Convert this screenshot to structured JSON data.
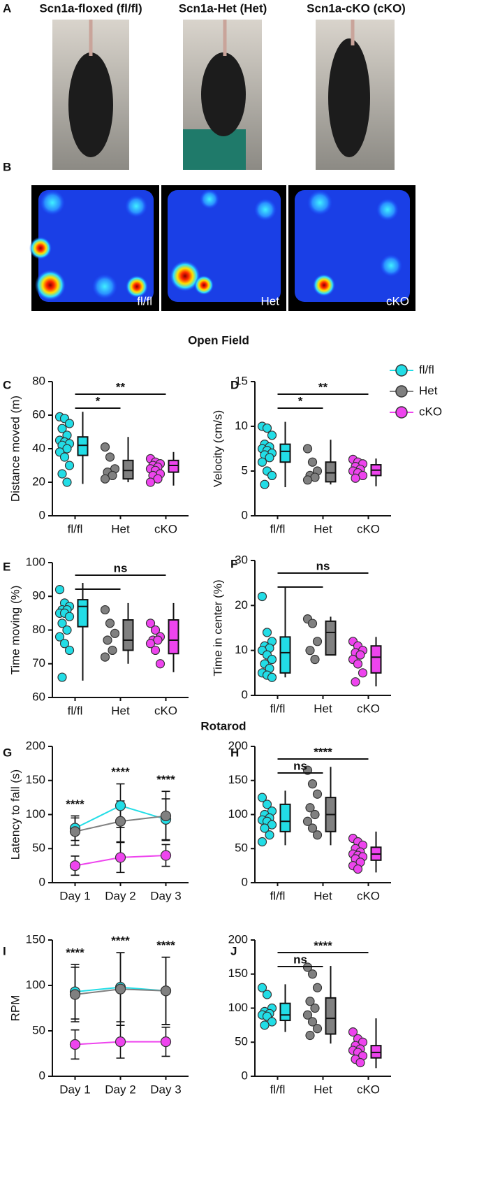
{
  "figure": {
    "photos": [
      {
        "panel": "A",
        "title": "Scn1a-floxed (fl/fl)"
      },
      {
        "title": "Scn1a-Het (Het)"
      },
      {
        "title": "Scn1a-cKO (cKO)"
      }
    ],
    "heatmaps": [
      {
        "panel": "B",
        "label": "fl/fl"
      },
      {
        "label": "Het"
      },
      {
        "label": "cKO"
      }
    ],
    "section_titles": [
      "Open Field",
      "Rotarod"
    ],
    "legend": [
      {
        "name": "fl/fl",
        "color": "#22dde6"
      },
      {
        "name": "Het",
        "color": "#808080"
      },
      {
        "name": "cKO",
        "color": "#ee44ee"
      }
    ]
  },
  "chart_data": [
    {
      "type": "box",
      "panel": "C",
      "ylabel": "Distance moved (m)",
      "categories": [
        "fl/fl",
        "Het",
        "cKO"
      ],
      "colors": [
        "#22dde6",
        "#808080",
        "#ee44ee"
      ],
      "ylim": [
        0,
        80
      ],
      "yticks": [
        0,
        20,
        40,
        60,
        80
      ],
      "groups": [
        {
          "points": [
            59,
            58,
            55,
            52,
            48,
            45,
            44,
            43,
            42,
            40,
            38,
            35,
            30,
            25,
            20
          ],
          "box": {
            "min": 19,
            "q1": 36,
            "median": 42,
            "q3": 47,
            "max": 62
          }
        },
        {
          "points": [
            41,
            35,
            28,
            26,
            24,
            22
          ],
          "box": {
            "min": 20,
            "q1": 22,
            "median": 27,
            "q3": 33,
            "max": 47
          }
        },
        {
          "points": [
            34,
            32,
            31,
            30,
            29,
            28,
            27,
            25,
            24,
            22,
            20
          ],
          "box": {
            "min": 18,
            "q1": 26,
            "median": 30,
            "q3": 33,
            "max": 38
          }
        }
      ],
      "comparisons": [
        {
          "between": [
            "fl/fl",
            "Het"
          ],
          "label": "*"
        },
        {
          "between": [
            "fl/fl",
            "cKO"
          ],
          "label": "**"
        }
      ]
    },
    {
      "type": "box",
      "panel": "D",
      "ylabel": "Velocity (cm/s)",
      "categories": [
        "fl/fl",
        "Het",
        "cKO"
      ],
      "colors": [
        "#22dde6",
        "#808080",
        "#ee44ee"
      ],
      "ylim": [
        0,
        15
      ],
      "yticks": [
        0,
        5,
        10,
        15
      ],
      "groups": [
        {
          "points": [
            10,
            9.8,
            9,
            8,
            7.7,
            7.5,
            7.3,
            7,
            6.8,
            6.5,
            6,
            5,
            4.5,
            3.5
          ],
          "box": {
            "min": 3.2,
            "q1": 6,
            "median": 7.2,
            "q3": 8,
            "max": 10.5
          }
        },
        {
          "points": [
            7.5,
            6,
            5,
            4.5,
            4.3,
            4
          ],
          "box": {
            "min": 3.5,
            "q1": 3.8,
            "median": 4.8,
            "q3": 6,
            "max": 8.5
          }
        },
        {
          "points": [
            6.3,
            6,
            5.8,
            5.5,
            5.2,
            5,
            4.8,
            4.5,
            4.2
          ],
          "box": {
            "min": 3.3,
            "q1": 4.5,
            "median": 5.1,
            "q3": 5.7,
            "max": 6.4
          }
        }
      ],
      "comparisons": [
        {
          "between": [
            "fl/fl",
            "Het"
          ],
          "label": "*"
        },
        {
          "between": [
            "fl/fl",
            "cKO"
          ],
          "label": "**"
        }
      ]
    },
    {
      "type": "box",
      "panel": "E",
      "ylabel": "Time moving (%)",
      "categories": [
        "fl/fl",
        "Het",
        "cKO"
      ],
      "colors": [
        "#22dde6",
        "#808080",
        "#ee44ee"
      ],
      "ylim": [
        60,
        100
      ],
      "yticks": [
        60,
        70,
        80,
        90,
        100
      ],
      "groups": [
        {
          "points": [
            92,
            88,
            87,
            86,
            86,
            85,
            85,
            84,
            82,
            80,
            78,
            76,
            74,
            66
          ],
          "box": {
            "min": 65,
            "q1": 81,
            "median": 87,
            "q3": 89,
            "max": 94
          }
        },
        {
          "points": [
            86,
            82,
            79,
            77,
            74,
            72
          ],
          "box": {
            "min": 70,
            "q1": 74,
            "median": 77,
            "q3": 83,
            "max": 88
          }
        },
        {
          "points": [
            82,
            80,
            78,
            77,
            77,
            76,
            74,
            70
          ],
          "box": {
            "min": 67.5,
            "q1": 73,
            "median": 77,
            "q3": 83,
            "max": 88
          }
        }
      ],
      "comparisons": [
        {
          "between": [
            "fl/fl",
            "Het"
          ]
        },
        {
          "between": [
            "fl/fl",
            "cKO"
          ],
          "label": "ns"
        }
      ]
    },
    {
      "type": "box",
      "panel": "F",
      "ylabel": "Time in center (%)",
      "categories": [
        "fl/fl",
        "Het",
        "cKO"
      ],
      "colors": [
        "#22dde6",
        "#808080",
        "#ee44ee"
      ],
      "ylim": [
        0,
        30
      ],
      "yticks": [
        0,
        10,
        20,
        30
      ],
      "groups": [
        {
          "points": [
            22,
            14,
            12,
            11,
            10.5,
            10,
            9,
            8,
            7,
            6,
            5,
            4.5,
            4
          ],
          "box": {
            "min": 4,
            "q1": 5,
            "median": 9.5,
            "q3": 13,
            "max": 24
          }
        },
        {
          "points": [
            17,
            16,
            12,
            10,
            8
          ],
          "box": {
            "min": 9,
            "q1": 9,
            "median": 14,
            "q3": 16.5,
            "max": 17.5
          }
        },
        {
          "points": [
            12,
            11,
            10,
            9.5,
            9,
            8,
            7,
            5,
            3
          ],
          "box": {
            "min": 2,
            "q1": 5,
            "median": 8.5,
            "q3": 11,
            "max": 13
          }
        }
      ],
      "comparisons": [
        {
          "between": [
            "fl/fl",
            "Het"
          ]
        },
        {
          "between": [
            "fl/fl",
            "cKO"
          ],
          "label": "ns"
        }
      ]
    },
    {
      "type": "line",
      "panel": "G",
      "ylabel": "Latency to fall (s)",
      "categories": [
        "Day 1",
        "Day 2",
        "Day 3"
      ],
      "ylim": [
        0,
        200
      ],
      "yticks": [
        0,
        50,
        100,
        150,
        200
      ],
      "series": [
        {
          "color": "#22dde6",
          "values": [
            80,
            113,
            93
          ],
          "errors": [
            18,
            32,
            30
          ]
        },
        {
          "color": "#808080",
          "values": [
            75,
            90,
            98
          ],
          "errors": [
            20,
            30,
            36
          ]
        },
        {
          "color": "#ee44ee",
          "values": [
            25,
            37,
            40
          ],
          "errors": [
            14,
            22,
            16
          ]
        }
      ],
      "annotations": [
        "****",
        "****",
        "****"
      ]
    },
    {
      "type": "box",
      "panel": "H",
      "categories": [
        "fl/fl",
        "Het",
        "cKO"
      ],
      "colors": [
        "#22dde6",
        "#808080",
        "#ee44ee"
      ],
      "ylim": [
        0,
        200
      ],
      "yticks": [
        0,
        50,
        100,
        150,
        200
      ],
      "groups": [
        {
          "points": [
            125,
            115,
            105,
            100,
            95,
            92,
            90,
            85,
            80,
            70,
            60
          ],
          "box": {
            "min": 55,
            "q1": 75,
            "median": 90,
            "q3": 115,
            "max": 135
          }
        },
        {
          "points": [
            165,
            145,
            130,
            110,
            100,
            90,
            80,
            70
          ],
          "box": {
            "min": 55,
            "q1": 75,
            "median": 100,
            "q3": 125,
            "max": 170
          }
        },
        {
          "points": [
            65,
            60,
            55,
            50,
            45,
            42,
            40,
            38,
            35,
            30,
            25,
            20
          ],
          "box": {
            "min": 15,
            "q1": 33,
            "median": 42,
            "q3": 52,
            "max": 75
          }
        }
      ],
      "comparisons": [
        {
          "between": [
            "fl/fl",
            "Het"
          ],
          "label": "ns"
        },
        {
          "between": [
            "fl/fl",
            "cKO"
          ],
          "label": "****"
        }
      ]
    },
    {
      "type": "line",
      "panel": "I",
      "ylabel": "RPM",
      "categories": [
        "Day 1",
        "Day 2",
        "Day 3"
      ],
      "ylim": [
        0,
        150
      ],
      "yticks": [
        0,
        50,
        100,
        150
      ],
      "series": [
        {
          "color": "#22dde6",
          "values": [
            93,
            98,
            94
          ],
          "errors": [
            30,
            38,
            37
          ]
        },
        {
          "color": "#808080",
          "values": [
            90,
            96,
            94
          ],
          "errors": [
            30,
            40,
            37
          ]
        },
        {
          "color": "#ee44ee",
          "values": [
            35,
            38,
            38
          ],
          "errors": [
            16,
            18,
            16
          ]
        }
      ],
      "annotations": [
        "****",
        "****",
        "****"
      ]
    },
    {
      "type": "box",
      "panel": "J",
      "categories": [
        "fl/fl",
        "Het",
        "cKO"
      ],
      "colors": [
        "#22dde6",
        "#808080",
        "#ee44ee"
      ],
      "ylim": [
        0,
        200
      ],
      "yticks": [
        0,
        50,
        100,
        150,
        200
      ],
      "groups": [
        {
          "points": [
            130,
            120,
            100,
            95,
            92,
            90,
            88,
            80,
            75
          ],
          "box": {
            "min": 65,
            "q1": 82,
            "median": 90,
            "q3": 107,
            "max": 135
          }
        },
        {
          "points": [
            160,
            150,
            130,
            110,
            100,
            90,
            80,
            70,
            60
          ],
          "box": {
            "min": 48,
            "q1": 62,
            "median": 85,
            "q3": 115,
            "max": 162
          }
        },
        {
          "points": [
            65,
            55,
            50,
            45,
            40,
            38,
            35,
            30,
            25,
            20
          ],
          "box": {
            "min": 12,
            "q1": 27,
            "median": 35,
            "q3": 45,
            "max": 85
          }
        }
      ],
      "comparisons": [
        {
          "between": [
            "fl/fl",
            "Het"
          ],
          "label": "ns"
        },
        {
          "between": [
            "fl/fl",
            "cKO"
          ],
          "label": "****"
        }
      ]
    }
  ]
}
